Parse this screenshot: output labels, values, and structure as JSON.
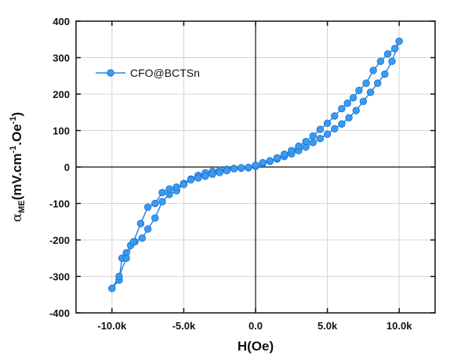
{
  "chart_data": {
    "type": "line",
    "xlabel": "H(Oe)",
    "ylabel_main": "α",
    "ylabel_sub": "ME",
    "ylabel_rest": "(mV.cm",
    "ylabel_exp1": "-1",
    "ylabel_mid": ".Oe",
    "ylabel_exp2": "-1",
    "ylabel_end": ")",
    "xlim": [
      -12500,
      12500
    ],
    "ylim": [
      -400,
      400
    ],
    "x_ticks": [
      -10000,
      -5000,
      0,
      5000,
      10000
    ],
    "x_tick_labels": [
      "-10.0k",
      "-5.0k",
      "0.0",
      "5.0k",
      "10.0k"
    ],
    "y_ticks": [
      -400,
      -300,
      -200,
      -100,
      0,
      100,
      200,
      300,
      400
    ],
    "y_tick_labels": [
      "-400",
      "-300",
      "-200",
      "-100",
      "0",
      "100",
      "200",
      "300",
      "400"
    ],
    "grid": true,
    "legend_position": "top-left",
    "colors": {
      "series": "#2a86e8",
      "marker": "#3a9af0",
      "axis": "#111111",
      "grid": "#d4d4d4"
    },
    "series": [
      {
        "name": "CFO@BCTSn",
        "x": [
          -10000,
          -9500,
          -9300,
          -9000,
          -8700,
          -8400,
          -7900,
          -7500,
          -7000,
          -6500,
          -6000,
          -5500,
          -5000,
          -4500,
          -4000,
          -3500,
          -3000,
          -2500,
          -2000,
          -1500,
          -1000,
          -500,
          0,
          500,
          1000,
          1500,
          2000,
          2500,
          3000,
          3500,
          4000,
          4500,
          5000,
          5500,
          6000,
          6500,
          7000,
          7500,
          8000,
          8500,
          9000,
          9500,
          10000,
          9700,
          9200,
          8700,
          8200,
          7700,
          7200,
          6800,
          6400,
          6000,
          5500,
          5000,
          4500,
          4000,
          3500,
          3000,
          2500,
          2000,
          1500,
          1000,
          500,
          0,
          -500,
          -1000,
          -1500,
          -2000,
          -2500,
          -3000,
          -3500,
          -4000,
          -4500,
          -5000,
          -5500,
          -6000,
          -6500,
          -7000,
          -7500,
          -8000,
          -8500,
          -9000,
          -9500,
          -10000
        ],
        "y": [
          -333,
          -310,
          -250,
          -235,
          -215,
          -205,
          -195,
          -170,
          -140,
          -95,
          -75,
          -65,
          -45,
          -33,
          -23,
          -16,
          -12,
          -9,
          -6,
          -4,
          -3,
          -2,
          2,
          10,
          16,
          22,
          29,
          36,
          45,
          55,
          67,
          78,
          90,
          105,
          118,
          135,
          155,
          180,
          205,
          230,
          255,
          290,
          345,
          325,
          310,
          290,
          265,
          230,
          210,
          190,
          175,
          160,
          140,
          120,
          103,
          85,
          70,
          57,
          45,
          35,
          25,
          17,
          12,
          5,
          -1,
          -2,
          -5,
          -10,
          -15,
          -20,
          -25,
          -30,
          -35,
          -48,
          -55,
          -60,
          -70,
          -100,
          -110,
          -155,
          -205,
          -250,
          -300,
          -333
        ]
      }
    ]
  }
}
